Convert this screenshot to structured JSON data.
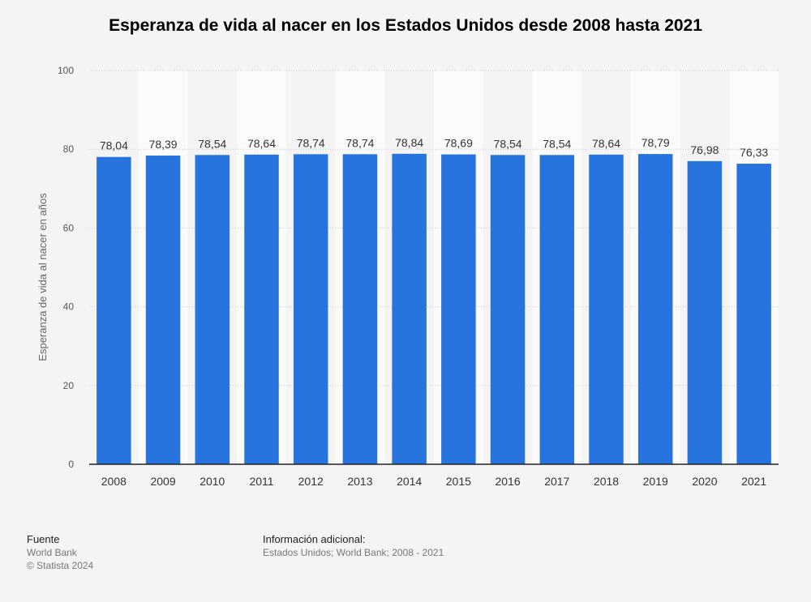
{
  "chart_data": {
    "type": "bar",
    "title": "Esperanza de vida al nacer en los Estados Unidos desde 2008 hasta 2021",
    "xlabel": "",
    "ylabel": "Esperanza de vida al nacer en años",
    "categories": [
      "2008",
      "2009",
      "2010",
      "2011",
      "2012",
      "2013",
      "2014",
      "2015",
      "2016",
      "2017",
      "2018",
      "2019",
      "2020",
      "2021"
    ],
    "values": [
      78.04,
      78.39,
      78.54,
      78.64,
      78.74,
      78.74,
      78.84,
      78.69,
      78.54,
      78.54,
      78.64,
      78.79,
      76.98,
      76.33
    ],
    "value_labels": [
      "78,04",
      "78,39",
      "78,54",
      "78,64",
      "78,74",
      "78,74",
      "78,84",
      "78,69",
      "78,54",
      "78,54",
      "78,64",
      "78,79",
      "76,98",
      "76,33"
    ],
    "ylim": [
      0,
      100
    ],
    "yticks": [
      0,
      20,
      40,
      60,
      80,
      100
    ],
    "grid": true,
    "legend": "none",
    "bar_color": "#2874de"
  },
  "footer": {
    "source_heading": "Fuente",
    "source_name": "World Bank",
    "copyright": "© Statista 2024",
    "info_heading": "Información adicional:",
    "info_text": "Estados Unidos; World Bank; 2008 - 2021"
  }
}
